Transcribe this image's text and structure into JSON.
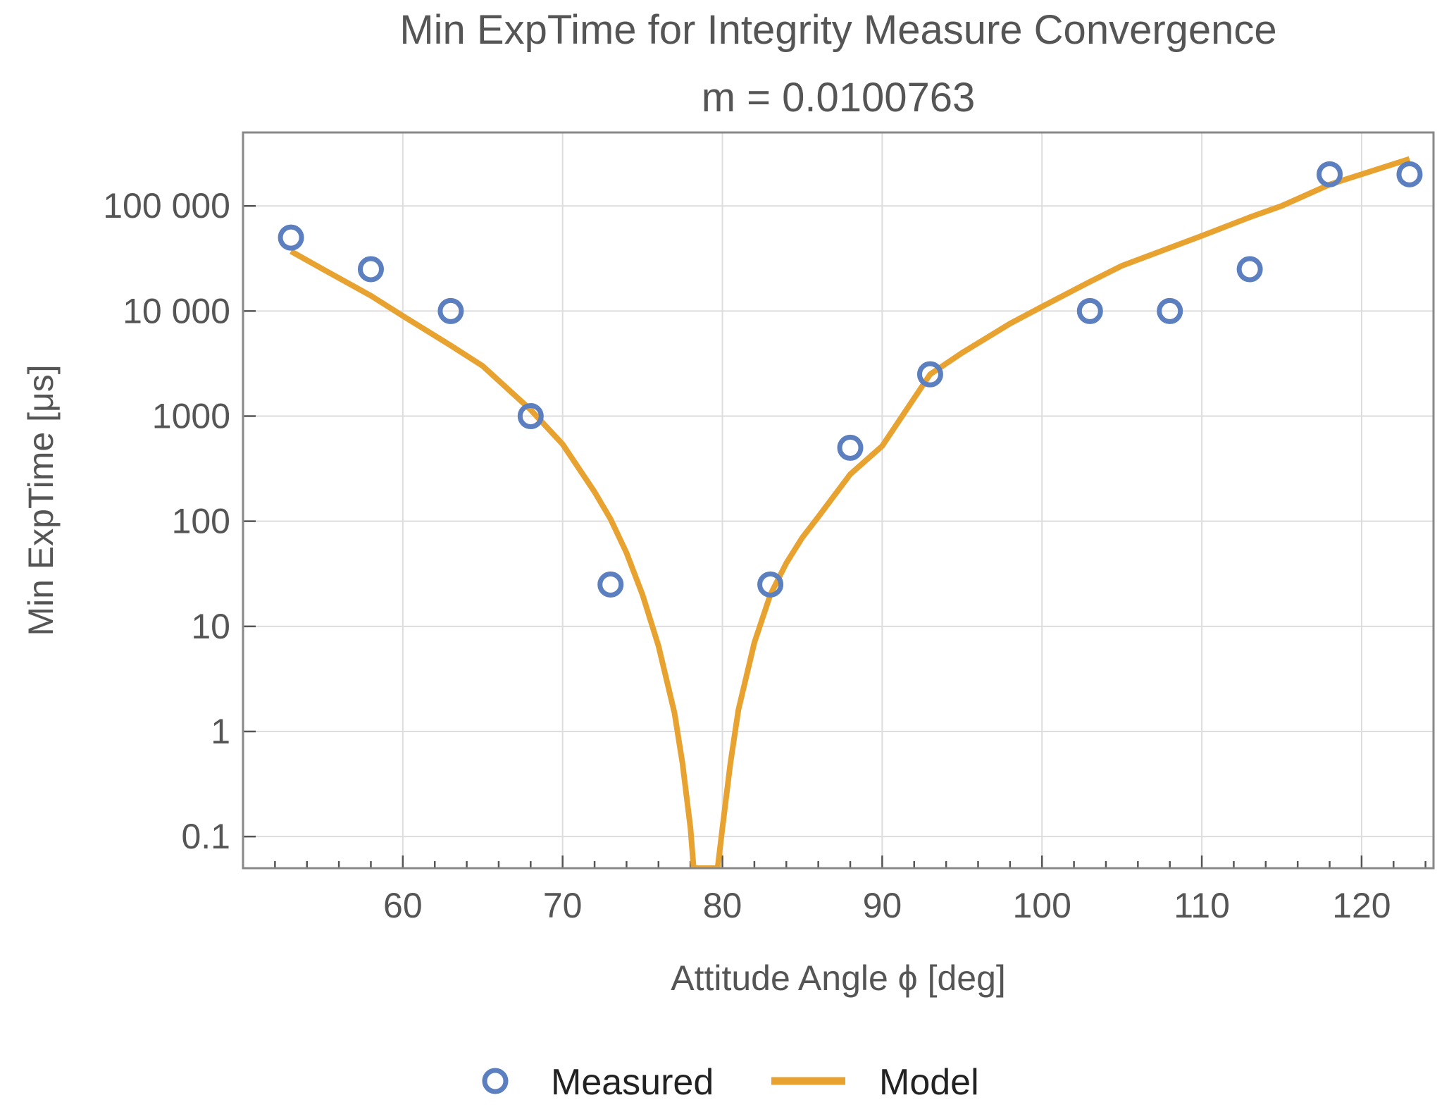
{
  "chart_data": {
    "type": "scatter",
    "title": "Min ExpTime for Integrity Measure Convergence",
    "subtitle": "m = 0.0100763",
    "xlabel": "Attitude Angle ϕ [deg]",
    "ylabel": "Min ExpTime [μs]",
    "x_ticks": [
      60,
      70,
      80,
      90,
      100,
      110,
      120
    ],
    "x_tick_labels": [
      "60",
      "70",
      "80",
      "90",
      "100",
      "110",
      "120"
    ],
    "xlim": [
      50,
      124.5
    ],
    "y_scale": "log",
    "y_ticks": [
      0.1,
      1,
      10,
      100,
      1000,
      10000,
      100000
    ],
    "y_tick_labels": [
      "0.1",
      "1",
      "10",
      "100",
      "1000",
      "10 000",
      "100 000"
    ],
    "ylim": [
      0.05,
      500000
    ],
    "grid": true,
    "legend_position": "bottom-center",
    "series": [
      {
        "name": "Measured",
        "kind": "markers",
        "color": "#5b7fbf",
        "x": [
          53,
          58,
          63,
          68,
          73,
          83,
          88,
          93,
          103,
          108,
          113,
          118,
          123
        ],
        "y": [
          50000,
          25000,
          10000,
          1000,
          25,
          25,
          500,
          2500,
          10000,
          10000,
          25000,
          200000,
          200000
        ]
      },
      {
        "name": "Model",
        "kind": "line",
        "color": "#e8a22f",
        "x": [
          53,
          55,
          58,
          60,
          63,
          65,
          68,
          70,
          72,
          73,
          74,
          75,
          76,
          77,
          77.5,
          78,
          78.2,
          79.7,
          80,
          80.5,
          81,
          82,
          83,
          84,
          85,
          86,
          88,
          90,
          93,
          95,
          98,
          100,
          103,
          105,
          108,
          110,
          113,
          115,
          118,
          120,
          123
        ],
        "y": [
          37000,
          25000,
          14000,
          9000,
          4700,
          3000,
          1150,
          540,
          190,
          105,
          50,
          20,
          6.5,
          1.5,
          0.5,
          0.12,
          0.05,
          0.05,
          0.12,
          0.5,
          1.6,
          7,
          20,
          40,
          70,
          110,
          280,
          520,
          2500,
          4000,
          7600,
          11000,
          19000,
          27000,
          40000,
          52000,
          78000,
          100000,
          160000,
          200000,
          280000
        ]
      }
    ]
  }
}
